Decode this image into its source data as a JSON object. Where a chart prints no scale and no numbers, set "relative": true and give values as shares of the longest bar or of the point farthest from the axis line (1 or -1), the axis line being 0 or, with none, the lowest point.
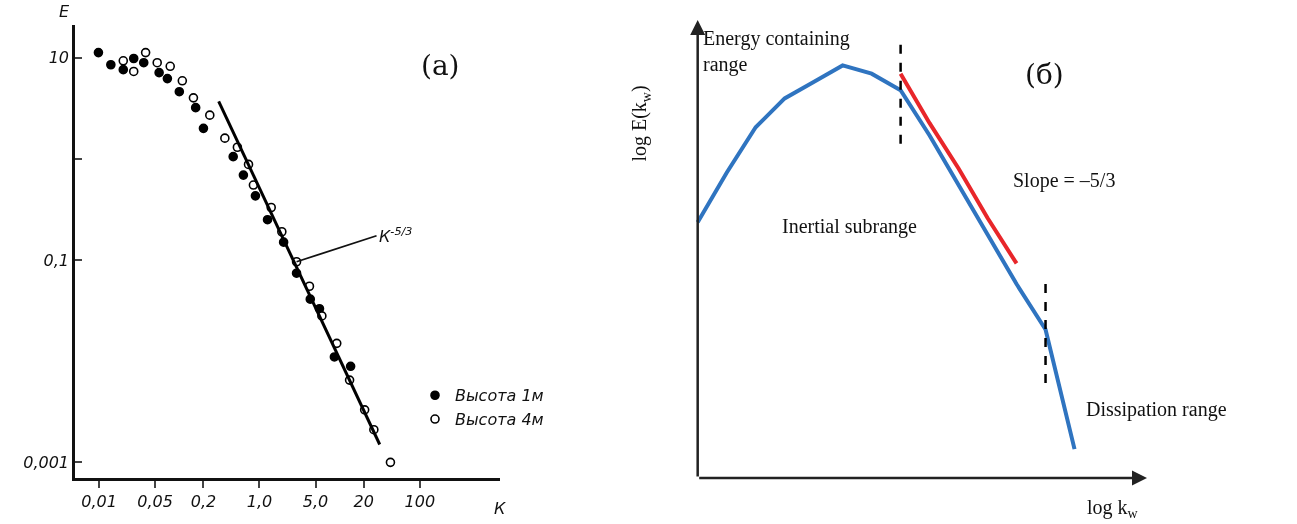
{
  "chart_data": [
    {
      "type": "scatter",
      "xlabel": "К",
      "ylabel": "E",
      "log": "xy",
      "legend": "bottom right",
      "xlim": [
        0.005,
        1000
      ],
      "ylim": [
        0.0007,
        21
      ],
      "xticks": [
        {
          "value": 0.01,
          "label": "0,01"
        },
        {
          "value": 0.05,
          "label": "0,05"
        },
        {
          "value": 0.2,
          "label": "0,2"
        },
        {
          "value": 1,
          "label": "1,0"
        },
        {
          "value": 5,
          "label": "5,0"
        },
        20,
        100
      ],
      "yticks": [
        10,
        {
          "value": 1,
          "label": null
        },
        {
          "value": 0.1,
          "label": "0,1"
        },
        {
          "value": 0.001,
          "label": "0,001"
        }
      ],
      "annotations": [
        "(а)",
        {
          "text": "К$^{-5/3}$",
          "x": 2.9,
          "y": 0.096
        }
      ],
      "series": [
        {
          "name": "Высота 1м",
          "color": "#000000",
          "marker": "circle",
          "x": [
            0.0098,
            0.014,
            0.02,
            0.027,
            0.036,
            0.056,
            0.071,
            0.1,
            0.16,
            0.2,
            0.47,
            0.63,
            0.89,
            1.26,
            2.0,
            2.9,
            4.3,
            5.6,
            8.6,
            13.7
          ],
          "values": [
            11.2,
            8.5,
            7.6,
            9.8,
            8.9,
            7.1,
            6.2,
            4.6,
            3.2,
            2.0,
            1.05,
            0.69,
            0.43,
            0.25,
            0.15,
            0.074,
            0.041,
            0.033,
            0.011,
            0.0089
          ]
        },
        {
          "name": "Высота 4м",
          "color": "#ffffff",
          "marker": "circle",
          "x": [
            0.02,
            0.027,
            0.038,
            0.053,
            0.077,
            0.109,
            0.15,
            0.24,
            0.37,
            0.53,
            0.73,
            0.84,
            1.4,
            1.9,
            2.9,
            4.2,
            6.0,
            9.2,
            13.3,
            20.5,
            26.7,
            43
          ],
          "values": [
            9.3,
            7.3,
            11.2,
            8.9,
            8.2,
            5.9,
            4.0,
            2.7,
            1.6,
            1.3,
            0.88,
            0.55,
            0.33,
            0.19,
            0.096,
            0.055,
            0.028,
            0.015,
            0.0065,
            0.0033,
            0.0021,
            0.001
          ]
        },
        {
          "type": "line",
          "color": "#000000",
          "x": [
            0.31,
            31.6
          ],
          "values": [
            3.7,
            0.0015
          ]
        }
      ]
    },
    {
      "type": "line",
      "relative": true,
      "tick_labels": false,
      "xlabel": "log k$_{w}$",
      "ylabel": "log E(k$_{w}$)",
      "categories": [
        null,
        null,
        null,
        null,
        null,
        null,
        null,
        null,
        null,
        null,
        null,
        null,
        null,
        null
      ],
      "annotations": [
        "Energy containing\nrange",
        "(б)",
        "Slope = –5/3",
        "Inertial subrange",
        "Dissipation range"
      ],
      "series": [
        {
          "color": "#2f74c0",
          "values": [
            0.62,
            0.74,
            0.85,
            0.92,
            0.96,
            1.0,
            0.98,
            0.94,
            0.83,
            0.71,
            0.59,
            0.47,
            0.36,
            0.07
          ]
        },
        {
          "color": "#e8262a",
          "values": [
            null,
            null,
            null,
            null,
            null,
            null,
            null,
            0.98,
            0.86,
            0.75,
            0.63,
            0.52,
            null,
            null
          ]
        }
      ]
    }
  ]
}
